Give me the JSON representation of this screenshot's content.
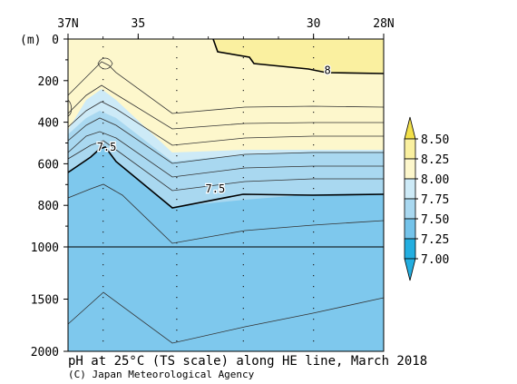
{
  "chart_data": {
    "type": "heatmap",
    "title": "pH at 25°C (TS scale) along HE line, March 2018",
    "credit": "(C) Japan Meteorological Agency",
    "yunit": "(m)",
    "x_ticks": [
      {
        "label": "37N",
        "lat": 37
      },
      {
        "label": "35",
        "lat": 35
      },
      {
        "label": "30",
        "lat": 30
      },
      {
        "label": "28N",
        "lat": 28
      }
    ],
    "x_range": [
      37,
      28
    ],
    "y_ticks_upper": [
      "0",
      "200",
      "400",
      "600",
      "800",
      "1000"
    ],
    "y_ticks_lower": [
      "1500",
      "2000"
    ],
    "depth_break": 1000,
    "depth_max": 2000,
    "contour_labels": [
      {
        "text": "8",
        "lat": 29.6,
        "depth": 150
      },
      {
        "text": "7.5",
        "lat": 35.9,
        "depth": 520
      },
      {
        "text": "7.5",
        "lat": 32.8,
        "depth": 720
      }
    ],
    "station_lats": [
      36.0,
      33.9,
      32.0,
      30.0
    ],
    "colorbar": {
      "labels": [
        "8.50",
        "8.25",
        "8.00",
        "7.75",
        "7.50",
        "7.25",
        "7.00"
      ],
      "colors": [
        "#f2e04a",
        "#faf0a0",
        "#fdf7cc",
        "#cdeaf7",
        "#a9d8f0",
        "#74c3ea",
        "#23aee0"
      ],
      "extend": "both"
    },
    "colors": {
      "above_8": "#faf0a0",
      "band_775_800": "#fdf7cc",
      "band_750_775": "#cdeaf7",
      "band_725_750": "#a9d8f0",
      "band_below_725": "#74c3ea",
      "deep": "#7ec8ed"
    }
  }
}
